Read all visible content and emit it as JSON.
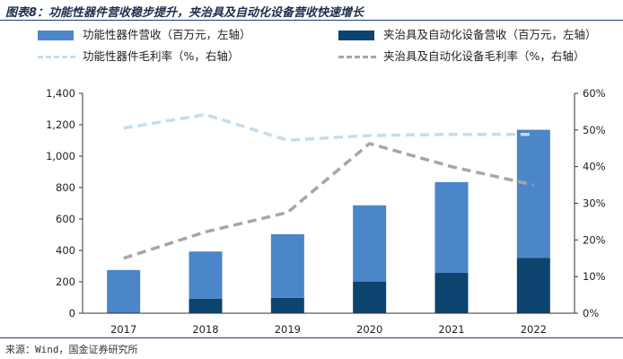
{
  "figure_title": "图表8：功能性器件营收稳步提升，夹治具及自动化设备营收快速增长",
  "source": "来源：Wind，国金证券研究所",
  "colors": {
    "bar_functional": "#4a86c8",
    "bar_fixture": "#0c4470",
    "line_functional": "#c5dcef",
    "line_fixture": "#a6a6a6"
  },
  "chart_data": {
    "type": "bar",
    "categories": [
      "2017",
      "2018",
      "2019",
      "2020",
      "2021",
      "2022"
    ],
    "series": [
      {
        "name": "功能性器件营收（百万元，左轴）",
        "kind": "bar-stack",
        "axis": "left",
        "values": [
          275,
          300,
          405,
          485,
          578,
          815
        ]
      },
      {
        "name": "夹治具及自动化设备营收（百万元，左轴）",
        "kind": "bar-stack",
        "axis": "left",
        "values": [
          0,
          93,
          98,
          202,
          257,
          353
        ]
      },
      {
        "name": "功能性器件毛利率（%，右轴）",
        "kind": "line",
        "axis": "right",
        "values": [
          50.5,
          54.2,
          47.2,
          48.5,
          48.8,
          48.8
        ]
      },
      {
        "name": "夹治具及自动化设备毛利率（%，右轴）",
        "kind": "line",
        "axis": "right",
        "values": [
          15,
          22.2,
          27.5,
          46.3,
          40,
          35
        ]
      }
    ],
    "y_left": {
      "min": 0,
      "max": 1400,
      "step": 200,
      "tick_labels": [
        "0",
        "200",
        "400",
        "600",
        "800",
        "1,000",
        "1,200",
        "1,400"
      ]
    },
    "y_right": {
      "min": 0,
      "max": 60,
      "step": 10,
      "tick_labels": [
        "0%",
        "10%",
        "20%",
        "30%",
        "40%",
        "50%",
        "60%"
      ]
    },
    "grid": false,
    "legend_position": "top"
  }
}
